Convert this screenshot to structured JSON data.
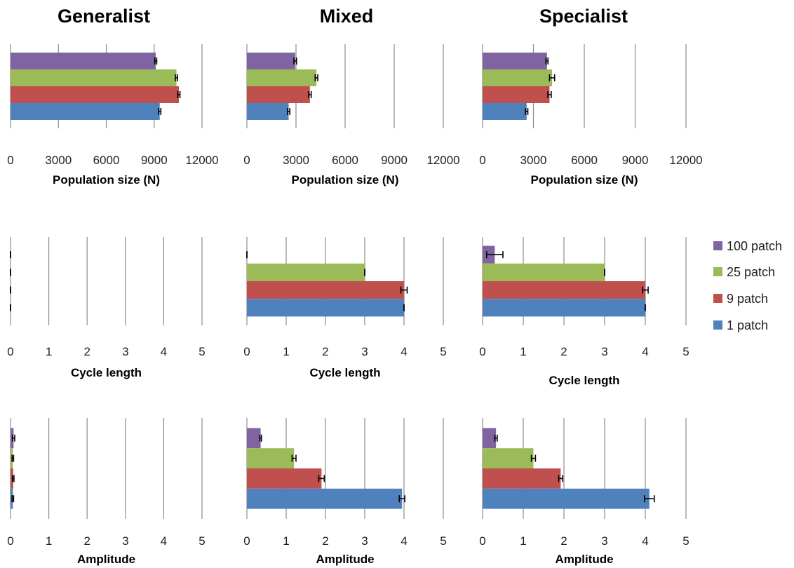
{
  "column_titles": [
    "Generalist",
    "Mixed",
    "Specialist"
  ],
  "legend": [
    {
      "label": "100 patch",
      "color": "#8064a2"
    },
    {
      "label": "25 patch",
      "color": "#9bbb59"
    },
    {
      "label": "9 patch",
      "color": "#c0504d"
    },
    {
      "label": "1 patch",
      "color": "#4f81bd"
    }
  ],
  "chart_data": [
    {
      "type": "bar",
      "orientation": "horizontal",
      "panel": "Generalist population",
      "xlabel": "Population size (N)",
      "xlim": [
        0,
        12000
      ],
      "xticks": [
        0,
        3000,
        6000,
        9000,
        12000
      ],
      "grid": true,
      "series": [
        {
          "name": "100 patch",
          "value": 9100,
          "error": 60
        },
        {
          "name": "25 patch",
          "value": 10400,
          "error": 70
        },
        {
          "name": "9 patch",
          "value": 10550,
          "error": 70
        },
        {
          "name": "1 patch",
          "value": 9350,
          "error": 70
        }
      ]
    },
    {
      "type": "bar",
      "orientation": "horizontal",
      "panel": "Mixed population",
      "xlabel": "Population size (N)",
      "xlim": [
        0,
        12000
      ],
      "xticks": [
        0,
        3000,
        6000,
        9000,
        12000
      ],
      "grid": true,
      "series": [
        {
          "name": "100 patch",
          "value": 2950,
          "error": 80
        },
        {
          "name": "25 patch",
          "value": 4250,
          "error": 80
        },
        {
          "name": "9 patch",
          "value": 3850,
          "error": 80
        },
        {
          "name": "1 patch",
          "value": 2550,
          "error": 70
        }
      ]
    },
    {
      "type": "bar",
      "orientation": "horizontal",
      "panel": "Specialist population",
      "xlabel": "Population size (N)",
      "xlim": [
        0,
        12000
      ],
      "xticks": [
        0,
        3000,
        6000,
        9000,
        12000
      ],
      "grid": true,
      "series": [
        {
          "name": "100 patch",
          "value": 3800,
          "error": 60
        },
        {
          "name": "25 patch",
          "value": 4100,
          "error": 150
        },
        {
          "name": "9 patch",
          "value": 3950,
          "error": 100
        },
        {
          "name": "1 patch",
          "value": 2600,
          "error": 70
        }
      ]
    },
    {
      "type": "bar",
      "orientation": "horizontal",
      "panel": "Generalist cycle",
      "xlabel": "Cycle length",
      "xlim": [
        0,
        5
      ],
      "xticks": [
        0,
        1,
        2,
        3,
        4,
        5
      ],
      "grid": true,
      "series": [
        {
          "name": "100 patch",
          "value": 0,
          "error": 0
        },
        {
          "name": "25 patch",
          "value": 0,
          "error": 0
        },
        {
          "name": "9 patch",
          "value": 0,
          "error": 0
        },
        {
          "name": "1 patch",
          "value": 0,
          "error": 0
        }
      ]
    },
    {
      "type": "bar",
      "orientation": "horizontal",
      "panel": "Mixed cycle",
      "xlabel": "Cycle length",
      "xlim": [
        0,
        5
      ],
      "xticks": [
        0,
        1,
        2,
        3,
        4,
        5
      ],
      "grid": true,
      "series": [
        {
          "name": "100 patch",
          "value": 0,
          "error": 0
        },
        {
          "name": "25 patch",
          "value": 3,
          "error": 0
        },
        {
          "name": "9 patch",
          "value": 4,
          "error": 0.08
        },
        {
          "name": "1 patch",
          "value": 4,
          "error": 0
        }
      ]
    },
    {
      "type": "bar",
      "orientation": "horizontal",
      "panel": "Specialist cycle",
      "xlabel": "Cycle length",
      "xlim": [
        0,
        5
      ],
      "xticks": [
        0,
        1,
        2,
        3,
        4,
        5
      ],
      "grid": true,
      "series": [
        {
          "name": "100 patch",
          "value": 0.3,
          "error": 0.2
        },
        {
          "name": "25 patch",
          "value": 3,
          "error": 0
        },
        {
          "name": "9 patch",
          "value": 4,
          "error": 0.07
        },
        {
          "name": "1 patch",
          "value": 4,
          "error": 0
        }
      ]
    },
    {
      "type": "bar",
      "orientation": "horizontal",
      "panel": "Generalist amplitude",
      "xlabel": "Amplitude",
      "xlim": [
        0,
        5
      ],
      "xticks": [
        0,
        1,
        2,
        3,
        4,
        5
      ],
      "grid": true,
      "series": [
        {
          "name": "100 patch",
          "value": 0.08,
          "error": 0.03
        },
        {
          "name": "25 patch",
          "value": 0.06,
          "error": 0.02
        },
        {
          "name": "9 patch",
          "value": 0.07,
          "error": 0.02
        },
        {
          "name": "1 patch",
          "value": 0.06,
          "error": 0.02
        }
      ]
    },
    {
      "type": "bar",
      "orientation": "horizontal",
      "panel": "Mixed amplitude",
      "xlabel": "Amplitude",
      "xlim": [
        0,
        5
      ],
      "xticks": [
        0,
        1,
        2,
        3,
        4,
        5
      ],
      "grid": true,
      "series": [
        {
          "name": "100 patch",
          "value": 0.35,
          "error": 0.02
        },
        {
          "name": "25 patch",
          "value": 1.2,
          "error": 0.05
        },
        {
          "name": "9 patch",
          "value": 1.9,
          "error": 0.07
        },
        {
          "name": "1 patch",
          "value": 3.95,
          "error": 0.07
        }
      ]
    },
    {
      "type": "bar",
      "orientation": "horizontal",
      "panel": "Specialist amplitude",
      "xlabel": "Amplitude",
      "xlim": [
        0,
        5
      ],
      "xticks": [
        0,
        1,
        2,
        3,
        4,
        5
      ],
      "grid": true,
      "series": [
        {
          "name": "100 patch",
          "value": 0.33,
          "error": 0.03
        },
        {
          "name": "25 patch",
          "value": 1.25,
          "error": 0.05
        },
        {
          "name": "9 patch",
          "value": 1.92,
          "error": 0.05
        },
        {
          "name": "1 patch",
          "value": 4.1,
          "error": 0.12
        }
      ]
    }
  ]
}
